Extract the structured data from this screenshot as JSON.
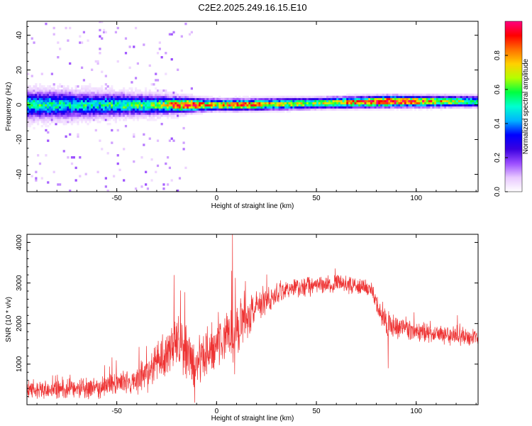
{
  "title": "C2E2.2025.249.16.15.E10",
  "chart_data": [
    {
      "type": "heatmap",
      "xlabel": "Height of straight line (km)",
      "ylabel": "Frequency (Hz)",
      "xlim": [
        -95,
        131
      ],
      "ylim": [
        -50,
        48
      ],
      "x_ticks": [
        -50,
        0,
        50,
        100
      ],
      "y_ticks": [
        -40,
        -20,
        0,
        20,
        40
      ],
      "colorbar": {
        "label": "Normalized spectral amplitude",
        "range": [
          0,
          1
        ],
        "ticks": [
          "0.0",
          "0.2",
          "0.4",
          "0.6",
          "0.8"
        ],
        "colors": [
          "#ffffff",
          "#e8c8ff",
          "#9b4dff",
          "#3a00e0",
          "#0000ff",
          "#00b4ff",
          "#00ffd0",
          "#00ff40",
          "#b4ff00",
          "#ffd000",
          "#ff7000",
          "#ff0000",
          "#ff0080"
        ]
      },
      "ridge": [
        {
          "x": -95,
          "freq": 0,
          "width": 6,
          "peak": 0.45
        },
        {
          "x": -60,
          "freq": 0,
          "width": 5,
          "peak": 0.45
        },
        {
          "x": -30,
          "freq": 0,
          "width": 4,
          "peak": 0.55
        },
        {
          "x": -15,
          "freq": 0,
          "width": 3,
          "peak": 0.95
        },
        {
          "x": 0,
          "freq": 0,
          "width": 2.5,
          "peak": 0.75
        },
        {
          "x": 10,
          "freq": 0,
          "width": 2.5,
          "peak": 0.85
        },
        {
          "x": 50,
          "freq": 1,
          "width": 2.5,
          "peak": 0.6
        },
        {
          "x": 85,
          "freq": 2,
          "width": 2.5,
          "peak": 1.0
        },
        {
          "x": 131,
          "freq": 2,
          "width": 2.5,
          "peak": 0.55
        }
      ]
    },
    {
      "type": "line",
      "xlabel": "Height of straight line (km)",
      "ylabel": "SNR (10 * v/v)",
      "xlim": [
        -95,
        131
      ],
      "ylim": [
        0,
        4200
      ],
      "x_ticks": [
        -50,
        0,
        50,
        100
      ],
      "y_ticks": [
        1000,
        2000,
        3000,
        4000
      ],
      "color": "#ee3333",
      "envelope": [
        {
          "x": -95,
          "mean": 350,
          "noise": 250
        },
        {
          "x": -60,
          "mean": 400,
          "noise": 300
        },
        {
          "x": -35,
          "mean": 700,
          "noise": 450
        },
        {
          "x": -25,
          "mean": 1300,
          "noise": 700
        },
        {
          "x": -18,
          "mean": 1700,
          "noise": 900
        },
        {
          "x": -11,
          "mean": 900,
          "noise": 800
        },
        {
          "x": 0,
          "mean": 1500,
          "noise": 700
        },
        {
          "x": 8,
          "mean": 1800,
          "noise": 800
        },
        {
          "x": 20,
          "mean": 2400,
          "noise": 450
        },
        {
          "x": 35,
          "mean": 2850,
          "noise": 300
        },
        {
          "x": 60,
          "mean": 3000,
          "noise": 250
        },
        {
          "x": 78,
          "mean": 2850,
          "noise": 250
        },
        {
          "x": 82,
          "mean": 2200,
          "noise": 350
        },
        {
          "x": 87,
          "mean": 1950,
          "noise": 400
        },
        {
          "x": 100,
          "mean": 1800,
          "noise": 300
        },
        {
          "x": 131,
          "mean": 1650,
          "noise": 250
        }
      ],
      "spikes": [
        {
          "x": 8,
          "value": 4200
        },
        {
          "x": 7.5,
          "value": 3300
        },
        {
          "x": 86,
          "value": 900
        },
        {
          "x": -11,
          "value": 50
        },
        {
          "x": 9,
          "value": 750
        }
      ]
    }
  ]
}
